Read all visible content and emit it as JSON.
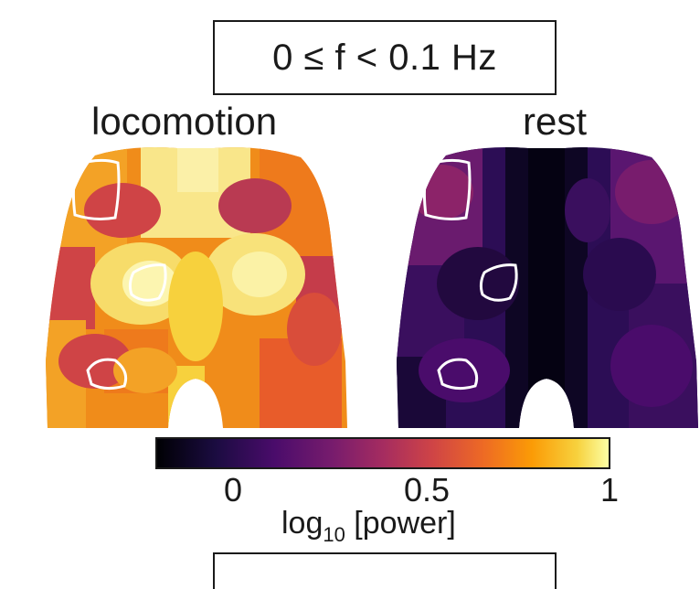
{
  "header": {
    "frequency_range": "0 ≤ f < 0.1 Hz"
  },
  "panels": [
    {
      "title": "locomotion",
      "colormap_level": "high"
    },
    {
      "title": "rest",
      "colormap_level": "low"
    }
  ],
  "colorbar": {
    "colormap": "inferno",
    "ticks": [
      "0",
      "0.5",
      "1"
    ],
    "label_main": "log",
    "label_sub": "10",
    "label_rest": " [power]",
    "colors": [
      "#000004",
      "#1b0c41",
      "#4a0c6b",
      "#781c6d",
      "#a52c60",
      "#cf4446",
      "#ed6925",
      "#fb9b06",
      "#f7d13d",
      "#fcffa4"
    ]
  }
}
